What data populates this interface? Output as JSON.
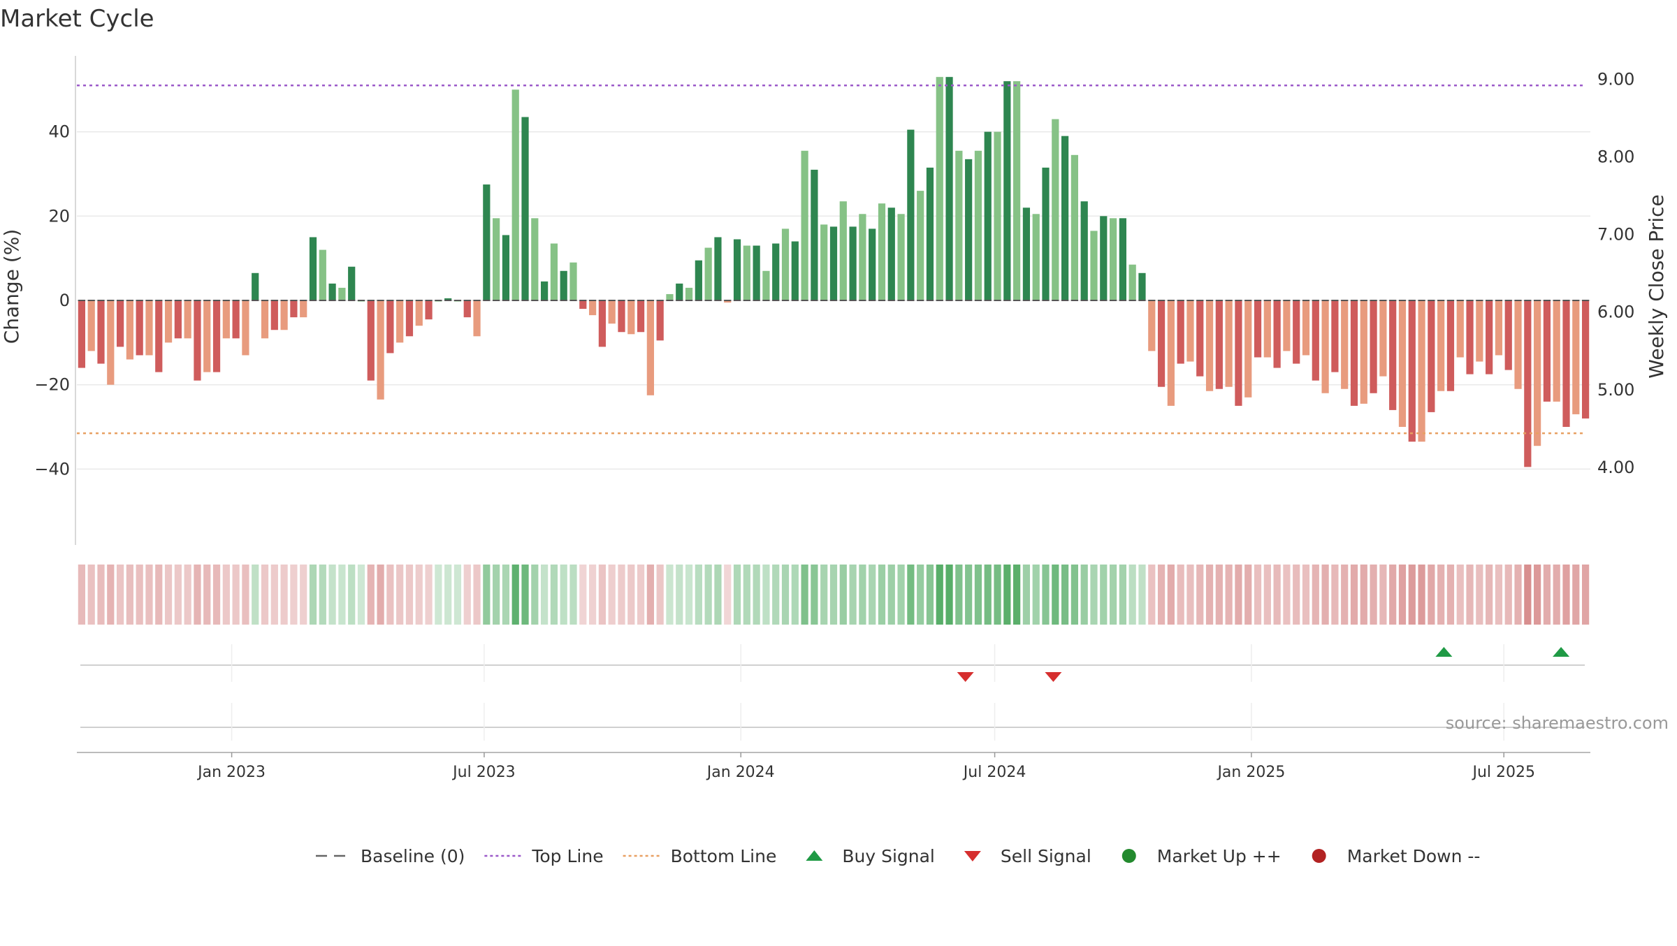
{
  "title": "Market Cycle",
  "source": "source: sharemaestro.com",
  "chart_data": {
    "type": "bar",
    "ylabel": "Change (%)",
    "y2label": "Weekly Close Price",
    "ylim": [
      -58,
      58
    ],
    "y2lim": [
      3.0,
      9.3
    ],
    "yticks": [
      -40,
      -20,
      0,
      20,
      40
    ],
    "y2ticks": [
      "4.00",
      "5.00",
      "6.00",
      "7.00",
      "8.00",
      "9.00"
    ],
    "top_line": 51,
    "bottom_line": -31.5,
    "xstart": "2022-09-12",
    "xend": "2025-09-01",
    "xticks": [
      {
        "label": "Jan 2023",
        "date": "2023-01-01"
      },
      {
        "label": "Jul 2023",
        "date": "2023-07-01"
      },
      {
        "label": "Jan 2024",
        "date": "2024-01-01"
      },
      {
        "label": "Jul 2024",
        "date": "2024-07-01"
      },
      {
        "label": "Jan 2025",
        "date": "2025-01-01"
      },
      {
        "label": "Jul 2025",
        "date": "2025-07-01"
      }
    ],
    "series": [
      {
        "start": "2022-09-12",
        "values": [
          -16,
          -12,
          -15,
          -20,
          -11,
          -14,
          -13,
          -13,
          -17,
          -10,
          -9,
          -9,
          -19,
          -17,
          -17,
          -9,
          -9,
          -13,
          6.5,
          -9,
          -7,
          -7,
          -4,
          -4,
          15,
          12,
          4,
          3,
          8,
          0,
          -19,
          -23.5,
          -12.5,
          -10,
          -8.5,
          -6,
          -4.5,
          0,
          0.5,
          0,
          -4,
          -8.5,
          27.5,
          19.5,
          15.5,
          50,
          43.5,
          19.5,
          4.5,
          13.5,
          7,
          9,
          -2,
          -3.5,
          -11,
          -5.5,
          -7.5,
          -8,
          -7.5,
          -22.5,
          -9.5,
          1.5,
          4,
          3,
          9.5,
          12.5,
          15,
          -0.5,
          14.5,
          13,
          13,
          7,
          13.5,
          17,
          14,
          35.5,
          31,
          18,
          17.5,
          23.5,
          17.5,
          20.5,
          17,
          23,
          22,
          20.5,
          40.5,
          26,
          31.5,
          53,
          53,
          35.5,
          33.5,
          35.5,
          40,
          40,
          52,
          52,
          22,
          20.5,
          31.5,
          43,
          39,
          34.5,
          23.5,
          16.5,
          20,
          19.5,
          19.5,
          8.5,
          6.5,
          -12,
          -20.5,
          -25,
          -15,
          -14.5,
          -18,
          -21.5,
          -21,
          -20.5,
          -25,
          -23,
          -13.5,
          -13.5,
          -16,
          -12,
          -15,
          -13,
          -19,
          -22,
          -17,
          -21,
          -25,
          -24.5,
          -22,
          -18,
          -26,
          -30,
          -33.5,
          -33.5,
          -26.5,
          -21.5,
          -21.5,
          -13.5,
          -17.5,
          -14.5,
          -17.5,
          -13,
          -16.5,
          -21,
          -39.5,
          -34.5,
          -24,
          -24,
          -30,
          -27,
          -28
        ]
      }
    ],
    "heat_strip": "Relative intensity per weekly bar",
    "signals": [
      {
        "type": "sell",
        "date": "2024-06-10"
      },
      {
        "type": "sell",
        "date": "2024-08-12"
      },
      {
        "type": "buy",
        "date": "2025-05-19"
      },
      {
        "type": "buy",
        "date": "2025-08-11"
      }
    ],
    "legend": [
      {
        "label": "Baseline (0)",
        "kind": "dash",
        "color": "#666666"
      },
      {
        "label": "Top Line",
        "kind": "dotted",
        "color": "#9b59c9"
      },
      {
        "label": "Bottom Line",
        "kind": "dotted",
        "color": "#e8a062"
      },
      {
        "label": "Buy Signal",
        "kind": "triangle-up",
        "color": "#1f9a45"
      },
      {
        "label": "Sell Signal",
        "kind": "triangle-down",
        "color": "#d62f2f"
      },
      {
        "label": "Market Up ++",
        "kind": "circle",
        "color": "#238a2e"
      },
      {
        "label": "Market Down --",
        "kind": "circle",
        "color": "#b22222"
      }
    ],
    "colors": {
      "up_strong": "#2e8650",
      "up_light": "#86c286",
      "down_strong": "#cf5c5c",
      "down_light": "#e89b7e",
      "strip_up": "#3ba04f",
      "strip_down": "#c86060"
    }
  }
}
